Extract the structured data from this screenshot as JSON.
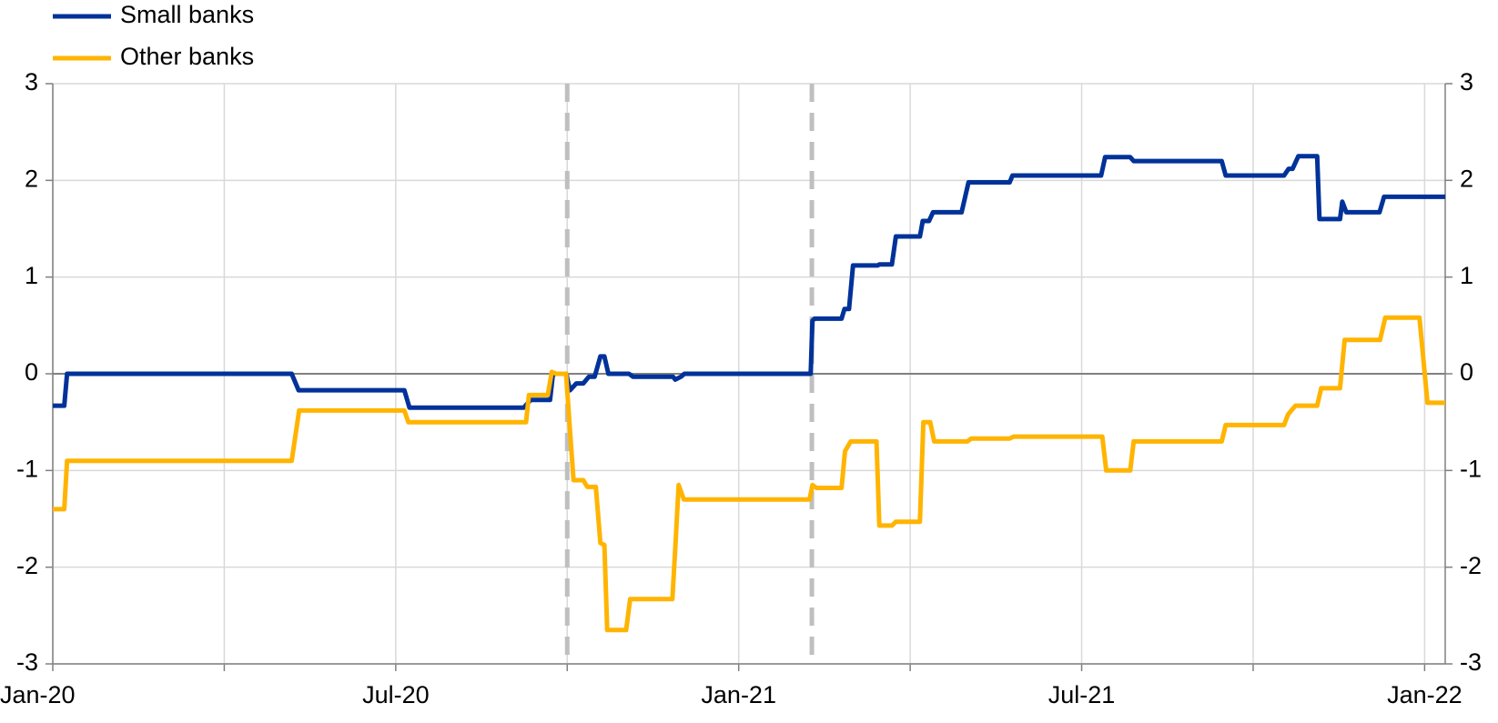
{
  "chart_data": {
    "type": "line",
    "xlim": [
      0,
      24.36
    ],
    "xticks": [
      {
        "value": 0,
        "label": "Jan-20"
      },
      {
        "value": 3,
        "label": null
      },
      {
        "value": 6,
        "label": "Jul-20"
      },
      {
        "value": 9,
        "label": null
      },
      {
        "value": 12,
        "label": "Jan-21"
      },
      {
        "value": 15,
        "label": null
      },
      {
        "value": 18,
        "label": "Jul-21"
      },
      {
        "value": 21,
        "label": null
      },
      {
        "value": 24,
        "label": "Jan-22"
      }
    ],
    "ylim": [
      -3,
      3
    ],
    "yticks": [
      -3,
      -2,
      -1,
      0,
      1,
      2,
      3
    ],
    "y2lim": [
      -3,
      3
    ],
    "y2ticks": [
      -3,
      -2,
      -1,
      0,
      1,
      2,
      3
    ],
    "grid": true,
    "legend": "top-left",
    "vlines": [
      9,
      13.28
    ],
    "series": [
      {
        "name": "Small banks",
        "color": "#003299",
        "x": [
          0,
          0.2,
          0.25,
          4.18,
          4.3,
          6.15,
          6.24,
          8.24,
          8.36,
          8.7,
          8.75,
          8.98,
          9.05,
          9.16,
          9.28,
          9.38,
          9.48,
          9.58,
          9.65,
          9.72,
          10.08,
          10.15,
          10.85,
          10.89,
          10.99,
          11.05,
          13.26,
          13.29,
          13.33,
          13.8,
          13.85,
          13.93,
          14.0,
          14.43,
          14.46,
          14.68,
          14.75,
          15.17,
          15.22,
          15.33,
          15.4,
          15.9,
          16.02,
          16.74,
          16.79,
          18.34,
          18.41,
          18.85,
          18.91,
          20.45,
          20.52,
          21.54,
          21.62,
          21.69,
          21.79,
          22.12,
          22.16,
          22.52,
          22.56,
          22.63,
          23.21,
          23.29,
          24.36
        ],
        "values": [
          -0.33,
          -0.33,
          0,
          0,
          -0.17,
          -0.17,
          -0.35,
          -0.35,
          -0.27,
          -0.27,
          0,
          0,
          -0.17,
          -0.1,
          -0.1,
          -0.03,
          -0.03,
          0.18,
          0.18,
          0,
          0,
          -0.03,
          -0.03,
          -0.06,
          -0.03,
          0,
          0,
          0.55,
          0.57,
          0.57,
          0.67,
          0.67,
          1.12,
          1.12,
          1.13,
          1.13,
          1.42,
          1.42,
          1.58,
          1.58,
          1.67,
          1.67,
          1.98,
          1.98,
          2.05,
          2.05,
          2.24,
          2.24,
          2.2,
          2.2,
          2.05,
          2.05,
          2.12,
          2.12,
          2.25,
          2.25,
          1.6,
          1.6,
          1.78,
          1.67,
          1.67,
          1.83,
          1.83
        ]
      },
      {
        "name": "Other banks",
        "color": "#ffb400",
        "x": [
          0,
          0.2,
          0.25,
          4.18,
          4.31,
          6.15,
          6.22,
          8.28,
          8.33,
          8.66,
          8.73,
          8.81,
          8.98,
          9.05,
          9.11,
          9.28,
          9.35,
          9.5,
          9.58,
          9.65,
          9.7,
          10.03,
          10.1,
          10.84,
          10.89,
          10.95,
          11.04,
          13.24,
          13.29,
          13.36,
          13.8,
          13.86,
          13.96,
          14.41,
          14.46,
          14.68,
          14.75,
          15.17,
          15.23,
          15.35,
          15.42,
          16.0,
          16.07,
          16.74,
          16.81,
          18.36,
          18.43,
          18.85,
          18.91,
          20.45,
          20.52,
          21.54,
          21.61,
          21.74,
          22.12,
          22.19,
          22.52,
          22.6,
          23.22,
          23.31,
          23.91,
          24.05,
          24.36
        ],
        "values": [
          -1.4,
          -1.4,
          -0.9,
          -0.9,
          -0.38,
          -0.38,
          -0.5,
          -0.5,
          -0.22,
          -0.22,
          0.02,
          0,
          0,
          -0.6,
          -1.1,
          -1.1,
          -1.17,
          -1.17,
          -1.75,
          -1.77,
          -2.65,
          -2.65,
          -2.33,
          -2.33,
          -1.8,
          -1.15,
          -1.3,
          -1.3,
          -1.15,
          -1.18,
          -1.18,
          -0.8,
          -0.7,
          -0.7,
          -1.57,
          -1.57,
          -1.53,
          -1.53,
          -0.5,
          -0.5,
          -0.7,
          -0.7,
          -0.67,
          -0.67,
          -0.65,
          -0.65,
          -1.0,
          -1.0,
          -0.7,
          -0.7,
          -0.53,
          -0.53,
          -0.42,
          -0.33,
          -0.33,
          -0.15,
          -0.15,
          0.35,
          0.35,
          0.58,
          0.58,
          -0.3,
          -0.3
        ]
      }
    ]
  }
}
